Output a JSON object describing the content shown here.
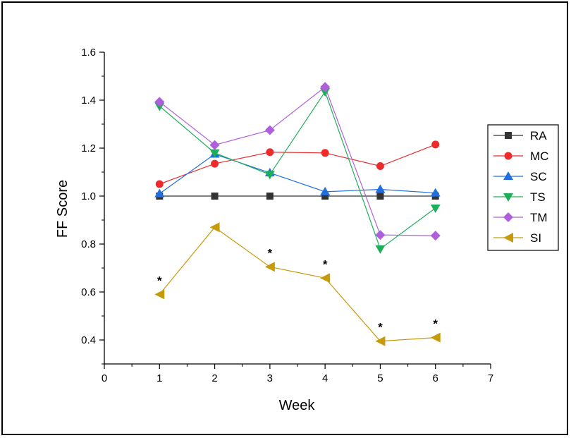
{
  "chart_data": {
    "type": "line",
    "xlabel": "Week",
    "ylabel": "FF Score",
    "xlim": [
      0,
      7
    ],
    "ylim": [
      0.3,
      1.6
    ],
    "x_ticks": [
      "0",
      "1",
      "2",
      "3",
      "4",
      "5",
      "6",
      "7"
    ],
    "y_ticks": [
      "0.4",
      "0.6",
      "0.8",
      "1.0",
      "1.2",
      "1.4",
      "1.6"
    ],
    "x": [
      1,
      2,
      3,
      4,
      5,
      6
    ],
    "grid": false,
    "legend_position": "right",
    "series": [
      {
        "name": "RA",
        "marker": "square",
        "color": "#333333",
        "values": [
          1.0,
          1.0,
          1.0,
          1.0,
          1.0,
          1.0
        ]
      },
      {
        "name": "MC",
        "marker": "circle",
        "color": "#ee2b2b",
        "values": [
          1.05,
          1.135,
          1.183,
          1.18,
          1.125,
          1.215
        ]
      },
      {
        "name": "SC",
        "marker": "triangle-up",
        "color": "#1f6fe0",
        "values": [
          1.01,
          1.175,
          1.097,
          1.018,
          1.028,
          1.013
        ]
      },
      {
        "name": "TS",
        "marker": "triangle-down",
        "color": "#1eae5a",
        "values": [
          1.375,
          1.18,
          1.09,
          1.435,
          0.78,
          0.95
        ]
      },
      {
        "name": "TM",
        "marker": "diamond",
        "color": "#b05fdc",
        "values": [
          1.393,
          1.213,
          1.275,
          1.455,
          0.838,
          0.835
        ]
      },
      {
        "name": "SI",
        "marker": "triangle-left",
        "color": "#c79a0a",
        "values": [
          0.59,
          0.87,
          0.705,
          0.658,
          0.395,
          0.41
        ]
      }
    ],
    "annotations": [
      {
        "text": "*",
        "x": 1,
        "y": 0.59
      },
      {
        "text": "*",
        "x": 3,
        "y": 0.705
      },
      {
        "text": "*",
        "x": 4,
        "y": 0.658
      },
      {
        "text": "*",
        "x": 5,
        "y": 0.395
      },
      {
        "text": "*",
        "x": 6,
        "y": 0.41
      }
    ]
  }
}
